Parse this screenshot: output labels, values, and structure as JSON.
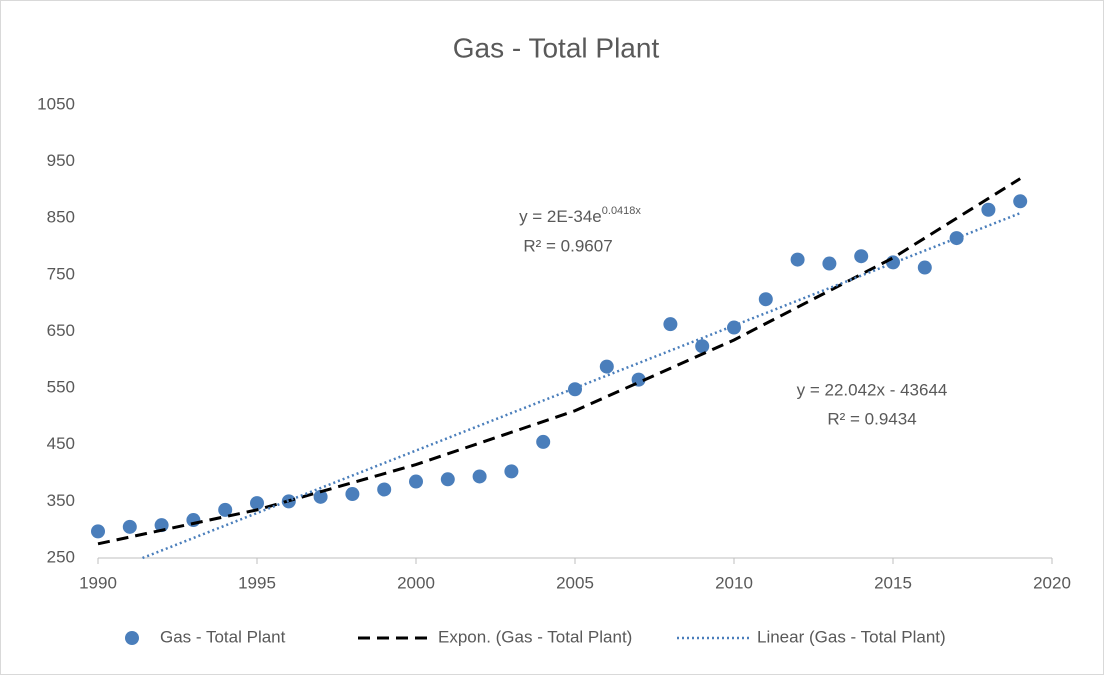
{
  "chart_data": {
    "type": "scatter",
    "title": "Gas - Total Plant",
    "xlim": [
      1990,
      2020
    ],
    "xticks": [
      1990,
      1995,
      2000,
      2005,
      2010,
      2015,
      2020
    ],
    "ylim": [
      250,
      1050
    ],
    "yticks": [
      250,
      350,
      450,
      550,
      650,
      750,
      850,
      950,
      1050
    ],
    "legend": "bottom",
    "series": [
      {
        "name": "Gas - Total Plant",
        "color": "#4a7ebb",
        "style": "marker",
        "x": [
          1990,
          1991,
          1992,
          1993,
          1994,
          1995,
          1996,
          1997,
          1998,
          1999,
          2000,
          2001,
          2002,
          2003,
          2004,
          2005,
          2006,
          2007,
          2008,
          2009,
          2010,
          2011,
          2012,
          2013,
          2014,
          2015,
          2016,
          2017,
          2018,
          2019
        ],
        "values": [
          297,
          305,
          308,
          317,
          335,
          347,
          350,
          358,
          363,
          371,
          385,
          389,
          394,
          403,
          455,
          548,
          588,
          565,
          663,
          624,
          657,
          707,
          777,
          770,
          783,
          772,
          763,
          815,
          865,
          880
        ]
      },
      {
        "name": "Expon. (Gas - Total Plant)",
        "color": "#000000",
        "style": "dashed",
        "x": [
          1990,
          1995,
          2000,
          2005,
          2010,
          2015,
          2019
        ],
        "values": [
          275,
          335,
          415,
          510,
          635,
          780,
          920
        ]
      },
      {
        "name": "Linear (Gas - Total Plant)",
        "color": "#4a7ebb",
        "style": "dotted",
        "x": [
          1991.4,
          2019
        ],
        "values": [
          250,
          859
        ]
      }
    ],
    "annotations": [
      {
        "text": "y = 2E-34e",
        "superscript": "0.0418x",
        "line2": "R² = 0.9607"
      },
      {
        "text": "y = 22.042x - 43644",
        "line2": "R² = 0.9434"
      }
    ]
  }
}
